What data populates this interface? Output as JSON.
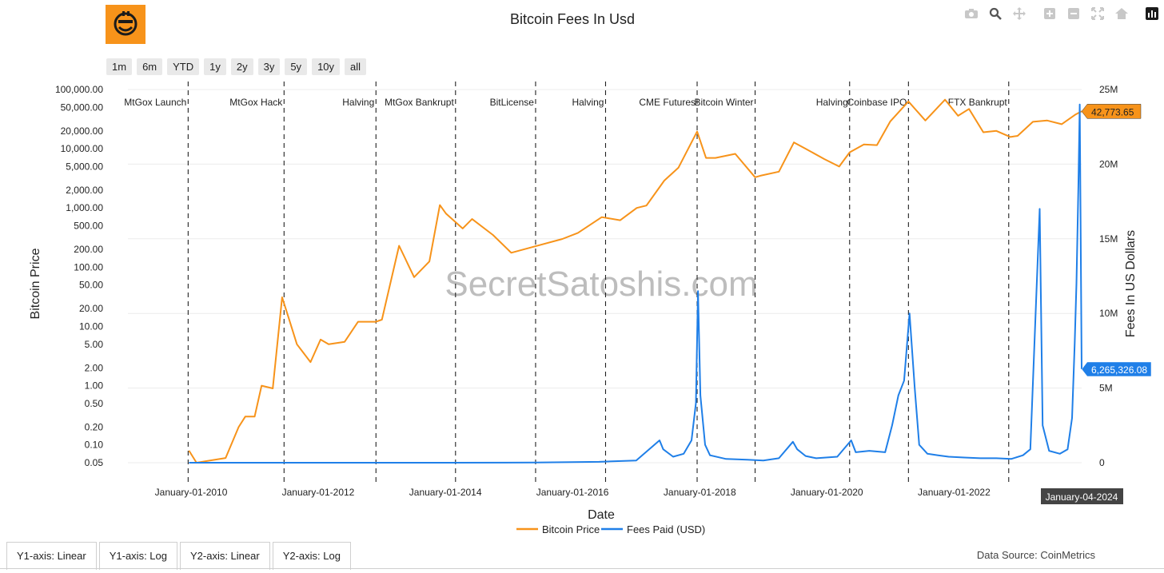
{
  "title": "Bitcoin Fees In Usd",
  "toolbar": [
    "camera-icon",
    "zoom-icon",
    "pan-icon",
    "zoom-in-icon",
    "zoom-out-icon",
    "autoscale-icon",
    "home-icon",
    "bar-chart-icon"
  ],
  "range_buttons": [
    "1m",
    "6m",
    "YTD",
    "1y",
    "2y",
    "3y",
    "5y",
    "10y",
    "all"
  ],
  "tabs": [
    "Y1-axis: Linear",
    "Y1-axis: Log",
    "Y2-axis: Linear",
    "Y2-axis: Log"
  ],
  "data_source": "Data Source: CoinMetrics",
  "watermark": "SecretSatoshis.com",
  "chart_data": {
    "type": "line",
    "title": "Bitcoin Fees In Usd",
    "xlabel": "Date",
    "ylabel": "Bitcoin Price",
    "y2label": "Fees In US Dollars",
    "x_ticks": [
      "January-01-2010",
      "January-01-2012",
      "January-01-2014",
      "January-01-2016",
      "January-01-2018",
      "January-01-2020",
      "January-01-2022"
    ],
    "x_range": [
      "2009-01-03",
      "2024-01-04"
    ],
    "y1_scale": "log",
    "y1_range": [
      0.05,
      100000
    ],
    "y1_ticks": [
      "100,000.00",
      "50,000.00",
      "20,000.00",
      "10,000.00",
      "5,000.00",
      "2,000.00",
      "1,000.00",
      "500.00",
      "200.00",
      "100.00",
      "50.00",
      "20.00",
      "10.00",
      "5.00",
      "2.00",
      "1.00",
      "0.50",
      "0.20",
      "0.10",
      "0.05"
    ],
    "y2_range": [
      0,
      25000000
    ],
    "y2_ticks": [
      "0",
      "5M",
      "10M",
      "15M",
      "20M",
      "25M"
    ],
    "events": [
      {
        "date": "2009-12-15",
        "label": "MtGox Launch"
      },
      {
        "date": "2011-06-19",
        "label": "MtGox Hack"
      },
      {
        "date": "2012-11-28",
        "label": "Halving"
      },
      {
        "date": "2014-02-28",
        "label": "MtGox Bankrupt"
      },
      {
        "date": "2015-06-03",
        "label": "BitLicense"
      },
      {
        "date": "2016-07-09",
        "label": "Halving"
      },
      {
        "date": "2017-12-17",
        "label": "CME Futures"
      },
      {
        "date": "2018-11-15",
        "label": "Bitcoin Winter"
      },
      {
        "date": "2020-05-11",
        "label": "Halving"
      },
      {
        "date": "2021-04-14",
        "label": "Coinbase IPO"
      },
      {
        "date": "2022-11-11",
        "label": "FTX Bankrupt"
      }
    ],
    "hover": {
      "date": "January-04-2024",
      "price_label": "42,773.65",
      "fees_label": "6,265,326.08"
    },
    "series": [
      {
        "name": "Bitcoin Price",
        "axis": "y1",
        "color": "#f7931a",
        "x": [
          "2009-12-20",
          "2010-02-01",
          "2010-07-18",
          "2010-10-01",
          "2010-11-08",
          "2011-01-01",
          "2011-02-10",
          "2011-04-15",
          "2011-06-08",
          "2011-07-15",
          "2011-09-01",
          "2011-11-18",
          "2012-01-15",
          "2012-03-01",
          "2012-06-01",
          "2012-08-17",
          "2012-11-28",
          "2013-01-01",
          "2013-04-10",
          "2013-07-05",
          "2013-10-01",
          "2013-11-30",
          "2014-01-05",
          "2014-04-10",
          "2014-06-03",
          "2014-10-01",
          "2015-01-14",
          "2015-06-01",
          "2015-11-04",
          "2016-02-01",
          "2016-06-17",
          "2016-10-01",
          "2017-01-04",
          "2017-03-01",
          "2017-06-11",
          "2017-09-01",
          "2017-12-17",
          "2018-02-06",
          "2018-04-01",
          "2018-07-24",
          "2018-11-15",
          "2018-12-15",
          "2019-04-01",
          "2019-06-26",
          "2019-09-01",
          "2019-12-17",
          "2020-03-12",
          "2020-05-11",
          "2020-08-01",
          "2020-10-15",
          "2020-12-31",
          "2021-04-14",
          "2021-07-20",
          "2021-11-10",
          "2022-01-24",
          "2022-03-28",
          "2022-06-18",
          "2022-09-01",
          "2022-11-21",
          "2023-01-01",
          "2023-03-30",
          "2023-06-20",
          "2023-09-11",
          "2023-12-01",
          "2024-01-04"
        ],
        "values": [
          0.08,
          0.05,
          0.06,
          0.2,
          0.3,
          0.3,
          1.0,
          0.9,
          31,
          14,
          5,
          2.5,
          6,
          5,
          5.5,
          12,
          12,
          13,
          230,
          68,
          125,
          1120,
          800,
          450,
          650,
          350,
          175,
          225,
          300,
          380,
          700,
          620,
          1000,
          1100,
          2900,
          4800,
          19500,
          7000,
          7000,
          8200,
          3300,
          3500,
          4100,
          12800,
          10000,
          6700,
          5000,
          8700,
          11800,
          11500,
          29000,
          63000,
          30000,
          67500,
          36000,
          47000,
          19000,
          20000,
          15800,
          16500,
          28500,
          30000,
          26000,
          38000,
          42773.65
        ]
      },
      {
        "name": "Fees Paid (USD)",
        "axis": "y2",
        "color": "#1f7fe8",
        "x": [
          "2009-12-20",
          "2012-01-01",
          "2014-01-01",
          "2015-06-01",
          "2016-06-01",
          "2017-01-01",
          "2017-05-15",
          "2017-06-05",
          "2017-08-01",
          "2017-10-01",
          "2017-11-15",
          "2017-12-10",
          "2017-12-22",
          "2018-01-05",
          "2018-02-01",
          "2018-03-01",
          "2018-06-01",
          "2018-10-01",
          "2019-01-01",
          "2019-04-01",
          "2019-06-20",
          "2019-07-15",
          "2019-09-01",
          "2019-11-01",
          "2020-03-01",
          "2020-05-20",
          "2020-06-15",
          "2020-09-01",
          "2020-12-01",
          "2021-01-10",
          "2021-02-15",
          "2021-03-20",
          "2021-04-20",
          "2021-05-20",
          "2021-06-15",
          "2021-08-01",
          "2021-10-01",
          "2021-12-01",
          "2022-03-01",
          "2022-06-01",
          "2022-09-01",
          "2022-11-25",
          "2023-02-01",
          "2023-03-15",
          "2023-05-08",
          "2023-05-25",
          "2023-07-01",
          "2023-09-01",
          "2023-10-15",
          "2023-11-10",
          "2023-11-25",
          "2023-12-05",
          "2023-12-16",
          "2023-12-24",
          "2024-01-04"
        ],
        "values": [
          0,
          0,
          0,
          10000,
          60000,
          150000,
          1500000,
          900000,
          400000,
          600000,
          1500000,
          4000000,
          11500000,
          4500000,
          1200000,
          500000,
          250000,
          200000,
          150000,
          300000,
          1400000,
          900000,
          450000,
          300000,
          400000,
          1500000,
          700000,
          800000,
          700000,
          2500000,
          4500000,
          5500000,
          10000000,
          5000000,
          1200000,
          600000,
          500000,
          400000,
          350000,
          300000,
          300000,
          250000,
          500000,
          900000,
          17000000,
          2500000,
          800000,
          600000,
          900000,
          3000000,
          8000000,
          12000000,
          18500000,
          24000000,
          6265326.08
        ]
      }
    ]
  }
}
